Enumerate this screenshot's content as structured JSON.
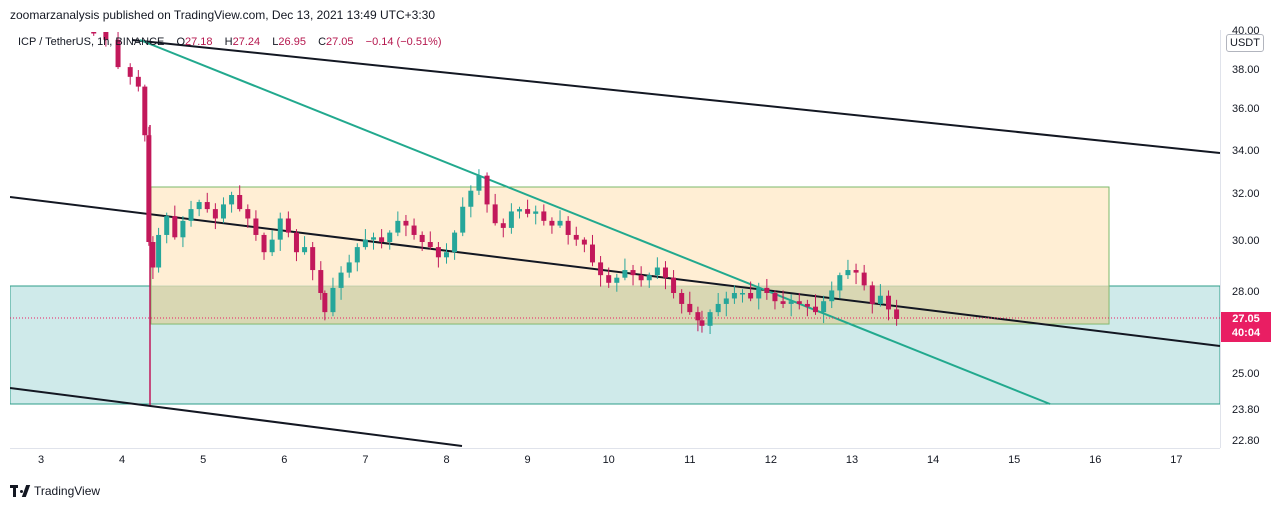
{
  "header": {
    "published": "zoomarzanalysis published on TradingView.com, Dec 13, 2021 13:49 UTC+3:30"
  },
  "legend": {
    "symbol": "ICP / TetherUS, 1h, BINANCE",
    "open_label": "O",
    "open": "27.18",
    "high_label": "H",
    "high": "27.24",
    "low_label": "L",
    "low": "26.95",
    "close_label": "C",
    "close": "27.05",
    "change": "−0.14 (−0.51%)"
  },
  "currency": "USDT",
  "price_tag": {
    "price": "27.05",
    "countdown": "40:04"
  },
  "footer": {
    "brand": "TradingView"
  },
  "colors": {
    "up": "#26a69a",
    "down": "#c2185b",
    "zone_orange": "#ffe8c6",
    "zone_teal": "#cfeaea",
    "trendline": "#22a98e"
  },
  "chart_data": {
    "type": "candlestick",
    "y_ticks": [
      "40.00",
      "38.00",
      "36.00",
      "34.00",
      "32.00",
      "30.00",
      "28.00",
      "25.00",
      "23.80",
      "22.80"
    ],
    "x_ticks": [
      "3",
      "4",
      "5",
      "6",
      "7",
      "8",
      "9",
      "10",
      "11",
      "12",
      "13",
      "14",
      "15",
      "16",
      "17"
    ],
    "x_range_days": [
      2.6,
      17.6
    ],
    "close_series": [
      [
        3.65,
        40.0
      ],
      [
        3.8,
        39.6
      ],
      [
        3.95,
        38.2
      ],
      [
        4.1,
        37.7
      ],
      [
        4.2,
        37.2
      ],
      [
        4.28,
        34.8
      ],
      [
        4.33,
        30.0
      ],
      [
        4.38,
        29.0
      ],
      [
        4.45,
        30.3
      ],
      [
        4.55,
        31.1
      ],
      [
        4.65,
        30.2
      ],
      [
        4.75,
        30.9
      ],
      [
        4.85,
        31.4
      ],
      [
        4.95,
        31.7
      ],
      [
        5.05,
        31.4
      ],
      [
        5.15,
        31.0
      ],
      [
        5.25,
        31.6
      ],
      [
        5.35,
        32.0
      ],
      [
        5.45,
        31.4
      ],
      [
        5.55,
        31.0
      ],
      [
        5.65,
        30.3
      ],
      [
        5.75,
        29.6
      ],
      [
        5.85,
        30.1
      ],
      [
        5.95,
        31.0
      ],
      [
        6.05,
        30.4
      ],
      [
        6.15,
        29.6
      ],
      [
        6.25,
        29.8
      ],
      [
        6.35,
        28.9
      ],
      [
        6.45,
        28.0
      ],
      [
        6.5,
        27.3
      ],
      [
        6.6,
        28.2
      ],
      [
        6.7,
        28.8
      ],
      [
        6.8,
        29.2
      ],
      [
        6.9,
        29.8
      ],
      [
        7.0,
        30.1
      ],
      [
        7.1,
        30.2
      ],
      [
        7.2,
        30.0
      ],
      [
        7.3,
        30.4
      ],
      [
        7.4,
        30.9
      ],
      [
        7.5,
        30.7
      ],
      [
        7.6,
        30.3
      ],
      [
        7.7,
        30.0
      ],
      [
        7.8,
        29.8
      ],
      [
        7.9,
        29.4
      ],
      [
        8.0,
        29.6
      ],
      [
        8.1,
        30.4
      ],
      [
        8.2,
        31.5
      ],
      [
        8.3,
        32.2
      ],
      [
        8.4,
        32.9
      ],
      [
        8.5,
        31.6
      ],
      [
        8.6,
        30.8
      ],
      [
        8.7,
        30.6
      ],
      [
        8.8,
        31.3
      ],
      [
        8.9,
        31.4
      ],
      [
        9.0,
        31.2
      ],
      [
        9.1,
        31.3
      ],
      [
        9.2,
        30.9
      ],
      [
        9.3,
        30.7
      ],
      [
        9.4,
        30.9
      ],
      [
        9.5,
        30.3
      ],
      [
        9.6,
        30.1
      ],
      [
        9.7,
        29.9
      ],
      [
        9.8,
        29.2
      ],
      [
        9.9,
        28.7
      ],
      [
        10.0,
        28.4
      ],
      [
        10.1,
        28.6
      ],
      [
        10.2,
        28.9
      ],
      [
        10.3,
        28.7
      ],
      [
        10.4,
        28.5
      ],
      [
        10.5,
        28.7
      ],
      [
        10.6,
        29.0
      ],
      [
        10.7,
        28.6
      ],
      [
        10.8,
        28.0
      ],
      [
        10.9,
        27.6
      ],
      [
        11.0,
        27.3
      ],
      [
        11.1,
        27.0
      ],
      [
        11.15,
        26.8
      ],
      [
        11.25,
        27.3
      ],
      [
        11.35,
        27.6
      ],
      [
        11.45,
        27.8
      ],
      [
        11.55,
        28.0
      ],
      [
        11.65,
        28.0
      ],
      [
        11.75,
        27.8
      ],
      [
        11.85,
        28.2
      ],
      [
        11.95,
        28.0
      ],
      [
        12.05,
        27.7
      ],
      [
        12.15,
        27.6
      ],
      [
        12.25,
        27.7
      ],
      [
        12.35,
        27.6
      ],
      [
        12.45,
        27.5
      ],
      [
        12.55,
        27.3
      ],
      [
        12.65,
        27.7
      ],
      [
        12.75,
        28.1
      ],
      [
        12.85,
        28.7
      ],
      [
        12.95,
        28.9
      ],
      [
        13.05,
        28.8
      ],
      [
        13.15,
        28.3
      ],
      [
        13.25,
        27.6
      ],
      [
        13.35,
        27.9
      ],
      [
        13.45,
        27.4
      ],
      [
        13.55,
        27.05
      ]
    ]
  }
}
